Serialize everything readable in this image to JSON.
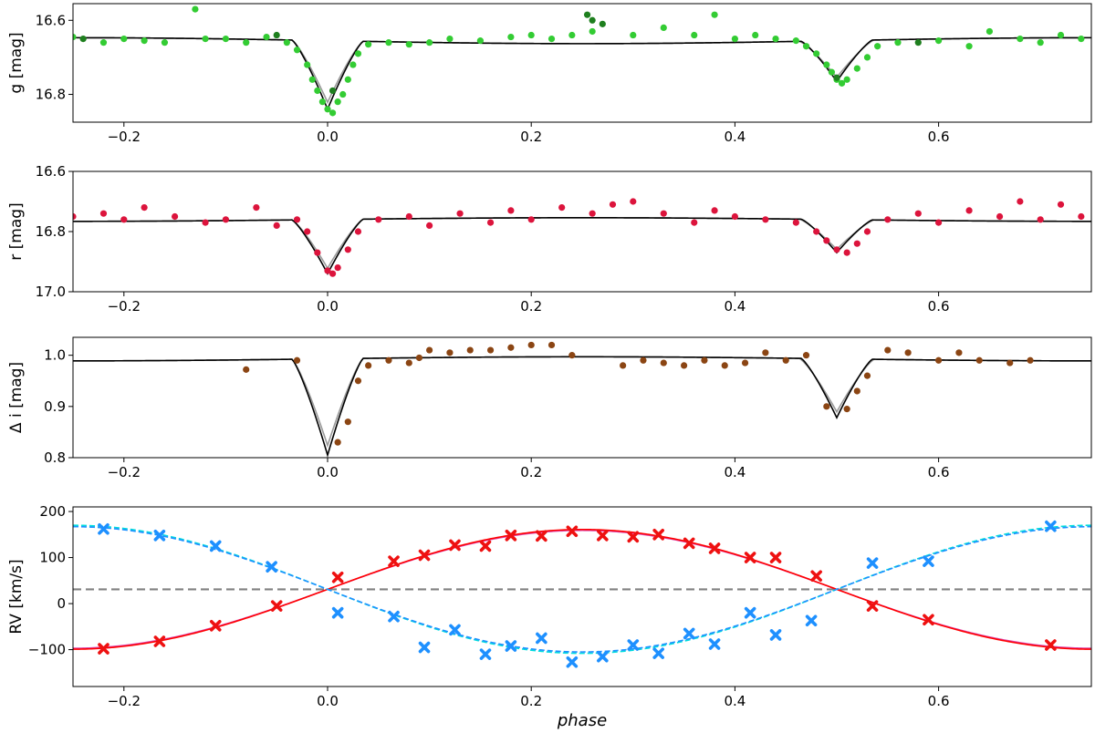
{
  "chart_data": [
    {
      "type": "scatter",
      "ylabel": "g [mag]",
      "xlim": [
        -0.25,
        0.75
      ],
      "ylim": [
        16.875,
        16.555
      ],
      "y_inverted": true,
      "xticks": [
        -0.2,
        0.0,
        0.2,
        0.4,
        0.6
      ],
      "xticklabels": [
        "−0.2",
        "0.0",
        "0.2",
        "0.4",
        "0.6"
      ],
      "yticks": [
        16.6,
        16.8
      ],
      "yticklabels": [
        "16.6",
        "16.8"
      ],
      "model": {
        "baseline": 16.655,
        "primary_center": 0.0,
        "primary_depth": 0.185,
        "secondary_center": 0.5,
        "secondary_depth": 0.11,
        "half_width": 0.035
      },
      "series": [
        {
          "kind": "points",
          "color": "#33cc33",
          "values": [
            [
              -0.25,
              16.645
            ],
            [
              -0.22,
              16.66
            ],
            [
              -0.2,
              16.65
            ],
            [
              -0.18,
              16.655
            ],
            [
              -0.16,
              16.66
            ],
            [
              -0.13,
              16.57
            ],
            [
              -0.12,
              16.65
            ],
            [
              -0.1,
              16.65
            ],
            [
              -0.08,
              16.66
            ],
            [
              -0.06,
              16.645
            ],
            [
              -0.04,
              16.66
            ],
            [
              -0.03,
              16.68
            ],
            [
              -0.02,
              16.72
            ],
            [
              -0.015,
              16.76
            ],
            [
              -0.01,
              16.79
            ],
            [
              -0.005,
              16.82
            ],
            [
              0.0,
              16.84
            ],
            [
              0.005,
              16.85
            ],
            [
              0.01,
              16.82
            ],
            [
              0.015,
              16.8
            ],
            [
              0.02,
              16.76
            ],
            [
              0.025,
              16.72
            ],
            [
              0.03,
              16.69
            ],
            [
              0.04,
              16.665
            ],
            [
              0.06,
              16.66
            ],
            [
              0.08,
              16.665
            ],
            [
              0.1,
              16.66
            ],
            [
              0.12,
              16.65
            ],
            [
              0.15,
              16.655
            ],
            [
              0.18,
              16.645
            ],
            [
              0.2,
              16.64
            ],
            [
              0.22,
              16.65
            ],
            [
              0.24,
              16.64
            ],
            [
              0.26,
              16.63
            ],
            [
              0.3,
              16.64
            ],
            [
              0.33,
              16.62
            ],
            [
              0.36,
              16.64
            ],
            [
              0.38,
              16.585
            ],
            [
              0.4,
              16.65
            ],
            [
              0.42,
              16.64
            ],
            [
              0.44,
              16.65
            ],
            [
              0.46,
              16.655
            ],
            [
              0.47,
              16.67
            ],
            [
              0.48,
              16.69
            ],
            [
              0.49,
              16.72
            ],
            [
              0.495,
              16.74
            ],
            [
              0.5,
              16.76
            ],
            [
              0.505,
              16.77
            ],
            [
              0.51,
              16.76
            ],
            [
              0.52,
              16.73
            ],
            [
              0.53,
              16.7
            ],
            [
              0.54,
              16.67
            ],
            [
              0.56,
              16.66
            ],
            [
              0.6,
              16.655
            ],
            [
              0.63,
              16.67
            ],
            [
              0.65,
              16.63
            ],
            [
              0.68,
              16.65
            ],
            [
              0.7,
              16.66
            ],
            [
              0.72,
              16.64
            ],
            [
              0.74,
              16.65
            ]
          ]
        },
        {
          "kind": "points",
          "color": "#1e7f1e",
          "values": [
            [
              -0.24,
              16.65
            ],
            [
              -0.05,
              16.64
            ],
            [
              0.255,
              16.585
            ],
            [
              0.26,
              16.6
            ],
            [
              0.27,
              16.61
            ],
            [
              0.005,
              16.79
            ],
            [
              0.5,
              16.755
            ],
            [
              0.58,
              16.66
            ]
          ]
        },
        {
          "kind": "line",
          "color": "#999999",
          "role": "model"
        },
        {
          "kind": "line",
          "color": "#000000",
          "role": "model"
        }
      ]
    },
    {
      "type": "scatter",
      "ylabel": "r [mag]",
      "xlim": [
        -0.25,
        0.75
      ],
      "ylim": [
        17.0,
        16.6
      ],
      "y_inverted": true,
      "xticks": [
        -0.2,
        0.0,
        0.2,
        0.4,
        0.6
      ],
      "xticklabels": [
        "−0.2",
        "0.0",
        "0.2",
        "0.4",
        "0.6"
      ],
      "yticks": [
        16.6,
        16.8,
        17.0
      ],
      "yticklabels": [
        "16.6",
        "16.8",
        "17.0"
      ],
      "model": {
        "baseline": 16.76,
        "primary_center": 0.0,
        "primary_depth": 0.18,
        "secondary_center": 0.5,
        "secondary_depth": 0.11,
        "half_width": 0.035
      },
      "series": [
        {
          "kind": "points",
          "color": "#dc143c",
          "values": [
            [
              -0.25,
              16.75
            ],
            [
              -0.22,
              16.74
            ],
            [
              -0.2,
              16.76
            ],
            [
              -0.18,
              16.72
            ],
            [
              -0.15,
              16.75
            ],
            [
              -0.12,
              16.77
            ],
            [
              -0.1,
              16.76
            ],
            [
              -0.07,
              16.72
            ],
            [
              -0.05,
              16.78
            ],
            [
              -0.03,
              16.76
            ],
            [
              -0.02,
              16.8
            ],
            [
              -0.01,
              16.87
            ],
            [
              0.0,
              16.93
            ],
            [
              0.005,
              16.94
            ],
            [
              0.01,
              16.92
            ],
            [
              0.02,
              16.86
            ],
            [
              0.03,
              16.8
            ],
            [
              0.05,
              16.76
            ],
            [
              0.08,
              16.75
            ],
            [
              0.1,
              16.78
            ],
            [
              0.13,
              16.74
            ],
            [
              0.16,
              16.77
            ],
            [
              0.18,
              16.73
            ],
            [
              0.2,
              16.76
            ],
            [
              0.23,
              16.72
            ],
            [
              0.26,
              16.74
            ],
            [
              0.28,
              16.71
            ],
            [
              0.3,
              16.7
            ],
            [
              0.33,
              16.74
            ],
            [
              0.36,
              16.77
            ],
            [
              0.38,
              16.73
            ],
            [
              0.4,
              16.75
            ],
            [
              0.43,
              16.76
            ],
            [
              0.46,
              16.77
            ],
            [
              0.48,
              16.8
            ],
            [
              0.49,
              16.83
            ],
            [
              0.5,
              16.86
            ],
            [
              0.51,
              16.87
            ],
            [
              0.52,
              16.84
            ],
            [
              0.53,
              16.8
            ],
            [
              0.55,
              16.76
            ],
            [
              0.58,
              16.74
            ],
            [
              0.6,
              16.77
            ],
            [
              0.63,
              16.73
            ],
            [
              0.66,
              16.75
            ],
            [
              0.68,
              16.7
            ],
            [
              0.7,
              16.76
            ],
            [
              0.72,
              16.71
            ],
            [
              0.74,
              16.75
            ]
          ]
        },
        {
          "kind": "line",
          "color": "#999999",
          "role": "model"
        },
        {
          "kind": "line",
          "color": "#000000",
          "role": "model"
        }
      ]
    },
    {
      "type": "scatter",
      "ylabel": "Δ i [mag]",
      "xlim": [
        -0.25,
        0.75
      ],
      "ylim": [
        0.8,
        1.035
      ],
      "xticks": [
        -0.2,
        0.0,
        0.2,
        0.4,
        0.6
      ],
      "xticklabels": [
        "−0.2",
        "0.0",
        "0.2",
        "0.4",
        "0.6"
      ],
      "yticks": [
        0.8,
        0.9,
        1.0
      ],
      "yticklabels": [
        "0.8",
        "0.9",
        "1.0"
      ],
      "model": {
        "baseline": 0.993,
        "primary_center": 0.0,
        "primary_depth": -0.188,
        "secondary_center": 0.5,
        "secondary_depth": -0.115,
        "half_width": 0.035
      },
      "series": [
        {
          "kind": "points",
          "color": "#8b4513",
          "values": [
            [
              -0.08,
              0.972
            ],
            [
              -0.03,
              0.99
            ],
            [
              0.01,
              0.83
            ],
            [
              0.02,
              0.87
            ],
            [
              0.03,
              0.95
            ],
            [
              0.04,
              0.98
            ],
            [
              0.06,
              0.99
            ],
            [
              0.08,
              0.985
            ],
            [
              0.09,
              0.995
            ],
            [
              0.1,
              1.01
            ],
            [
              0.12,
              1.005
            ],
            [
              0.14,
              1.01
            ],
            [
              0.16,
              1.01
            ],
            [
              0.18,
              1.015
            ],
            [
              0.2,
              1.02
            ],
            [
              0.22,
              1.02
            ],
            [
              0.24,
              1.0
            ],
            [
              0.29,
              0.98
            ],
            [
              0.31,
              0.99
            ],
            [
              0.33,
              0.985
            ],
            [
              0.35,
              0.98
            ],
            [
              0.37,
              0.99
            ],
            [
              0.39,
              0.98
            ],
            [
              0.41,
              0.985
            ],
            [
              0.43,
              1.005
            ],
            [
              0.45,
              0.99
            ],
            [
              0.47,
              1.0
            ],
            [
              0.49,
              0.9
            ],
            [
              0.51,
              0.895
            ],
            [
              0.52,
              0.93
            ],
            [
              0.53,
              0.96
            ],
            [
              0.55,
              1.01
            ],
            [
              0.57,
              1.005
            ],
            [
              0.6,
              0.99
            ],
            [
              0.62,
              1.005
            ],
            [
              0.64,
              0.99
            ],
            [
              0.67,
              0.985
            ],
            [
              0.69,
              0.99
            ]
          ]
        },
        {
          "kind": "line",
          "color": "#999999",
          "role": "model"
        },
        {
          "kind": "line",
          "color": "#000000",
          "role": "model"
        }
      ]
    },
    {
      "type": "scatter",
      "ylabel": "RV [km/s]",
      "xlabel": "phase",
      "xlim": [
        -0.25,
        0.75
      ],
      "ylim": [
        -180,
        210
      ],
      "xticks": [
        -0.2,
        0.0,
        0.2,
        0.4,
        0.6
      ],
      "xticklabels": [
        "−0.2",
        "0.0",
        "0.2",
        "0.4",
        "0.6"
      ],
      "yticks": [
        -100,
        0,
        100,
        200
      ],
      "yticklabels": [
        "−100",
        "0",
        "100",
        "200"
      ],
      "systemic_velocity": 31,
      "model": {
        "gamma": 31,
        "K1": 130,
        "K2": 136
      },
      "series": [
        {
          "kind": "crosses",
          "color": "#ee1111",
          "name": "primary",
          "values": [
            [
              -0.22,
              -98
            ],
            [
              -0.165,
              -82
            ],
            [
              -0.11,
              -48
            ],
            [
              -0.05,
              -5
            ],
            [
              0.01,
              57
            ],
            [
              0.065,
              92
            ],
            [
              0.095,
              105
            ],
            [
              0.125,
              127
            ],
            [
              0.155,
              125
            ],
            [
              0.18,
              148
            ],
            [
              0.21,
              147
            ],
            [
              0.24,
              157
            ],
            [
              0.27,
              148
            ],
            [
              0.3,
              145
            ],
            [
              0.325,
              150
            ],
            [
              0.355,
              131
            ],
            [
              0.38,
              120
            ],
            [
              0.415,
              100
            ],
            [
              0.44,
              100
            ],
            [
              0.48,
              60
            ],
            [
              0.535,
              -5
            ],
            [
              0.59,
              -35
            ],
            [
              0.71,
              -90
            ]
          ]
        },
        {
          "kind": "crosses",
          "color": "#1e90ff",
          "name": "secondary",
          "values": [
            [
              -0.22,
              162
            ],
            [
              -0.165,
              148
            ],
            [
              -0.11,
              125
            ],
            [
              -0.055,
              80
            ],
            [
              0.01,
              -20
            ],
            [
              0.065,
              -28
            ],
            [
              0.095,
              -95
            ],
            [
              0.125,
              -57
            ],
            [
              0.155,
              -110
            ],
            [
              0.18,
              -92
            ],
            [
              0.21,
              -75
            ],
            [
              0.24,
              -127
            ],
            [
              0.27,
              -115
            ],
            [
              0.3,
              -90
            ],
            [
              0.325,
              -108
            ],
            [
              0.355,
              -65
            ],
            [
              0.38,
              -88
            ],
            [
              0.415,
              -20
            ],
            [
              0.44,
              -68
            ],
            [
              0.475,
              -37
            ],
            [
              0.535,
              88
            ],
            [
              0.59,
              92
            ],
            [
              0.71,
              168
            ]
          ]
        },
        {
          "kind": "line",
          "color": "#ff0000",
          "role": "model"
        },
        {
          "kind": "line",
          "color": "#dd44aa",
          "role": "model"
        },
        {
          "kind": "dashed-line",
          "color": "#1e90ff",
          "role": "model"
        },
        {
          "kind": "dashed-line",
          "color": "#00dddd",
          "role": "model"
        },
        {
          "kind": "dashed-line",
          "color": "#808080",
          "role": "systemic-velocity"
        }
      ]
    }
  ]
}
